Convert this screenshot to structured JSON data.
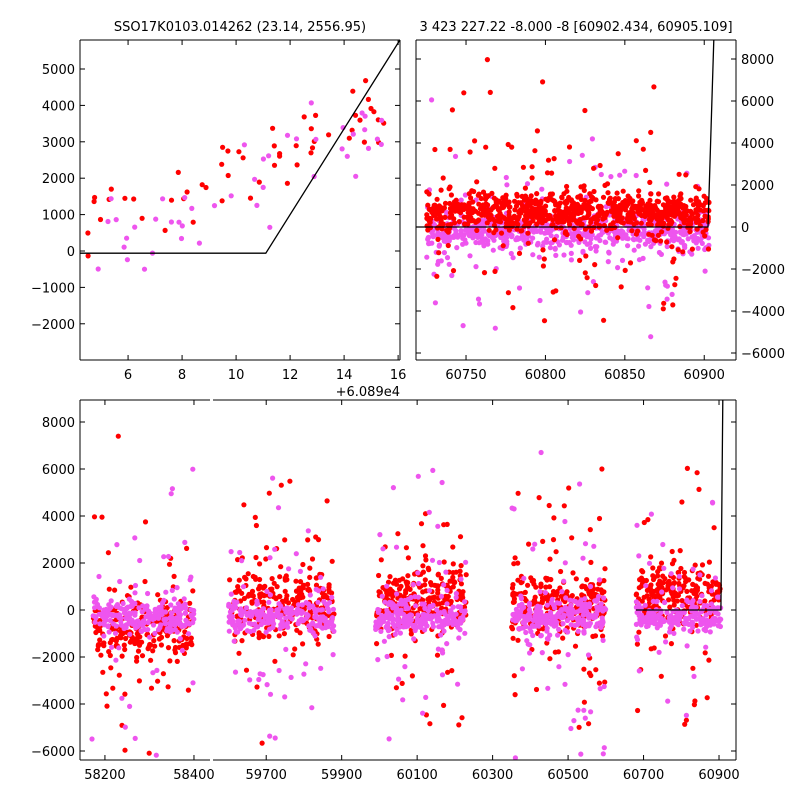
{
  "colors": {
    "red": "#ff0000",
    "magenta": "#ee55ee",
    "line": "#000000"
  },
  "chart_data": [
    {
      "type": "scatter",
      "title": "SSO17K0103.014262 (23.14, 2556.95)",
      "x_offset_label": "+6.089e4",
      "xlim": [
        4.22,
        16.07
      ],
      "ylim": [
        -2995,
        5797
      ],
      "xticks": [
        "6",
        "8",
        "10",
        "12",
        "14",
        "16"
      ],
      "xtick_values": [
        6,
        8,
        10,
        12,
        14,
        16
      ],
      "yticks": [
        "−2000",
        "−1000",
        "0",
        "1000",
        "2000",
        "3000",
        "4000",
        "5000"
      ],
      "ytick_values": [
        -2000,
        -1000,
        0,
        1000,
        2000,
        3000,
        4000,
        5000
      ],
      "ytick_side": "left",
      "model_line": [
        [
          4.22,
          -60
        ],
        [
          11.1,
          -60
        ],
        [
          16.07,
          5800
        ]
      ],
      "series": [
        {
          "name": "red",
          "color": "red",
          "x_range": [
            4.5,
            15.5
          ],
          "base": 900,
          "slope": 230,
          "spread": 500,
          "count": 55
        },
        {
          "name": "magenta",
          "color": "magenta",
          "x_range": [
            4.8,
            15.4
          ],
          "base": 100,
          "slope": 280,
          "spread": 800,
          "count": 45
        }
      ]
    },
    {
      "type": "scatter",
      "title": "3 423 227.22 -8.000 -8 [60902.434, 60905.109]",
      "xlim": [
        60718.5,
        60920
      ],
      "ylim": [
        -6333,
        8905
      ],
      "xticks": [
        "60750",
        "60800",
        "60850",
        "60900"
      ],
      "xtick_values": [
        60750,
        60800,
        60850,
        60900
      ],
      "yticks": [
        "−6000",
        "−4000",
        "−2000",
        "0",
        "2000",
        "4000",
        "6000",
        "8000"
      ],
      "ytick_values": [
        -6000,
        -4000,
        -2000,
        0,
        2000,
        4000,
        6000,
        8000
      ],
      "ytick_side": "right",
      "model_line": [
        [
          60718.5,
          0
        ],
        [
          60902.4,
          0
        ],
        [
          60906,
          8905
        ]
      ],
      "series": [
        {
          "name": "red",
          "color": "red",
          "x_range": [
            60725,
            60903
          ],
          "center": 700,
          "spread": 450,
          "outlier_spread": 2500,
          "count": 900
        },
        {
          "name": "magenta",
          "color": "magenta",
          "x_range": [
            60725,
            60903
          ],
          "center": -200,
          "spread": 450,
          "outlier_spread": 2200,
          "count": 700
        }
      ]
    },
    {
      "type": "scatter",
      "title": "",
      "broken_x_axis": true,
      "panels": [
        {
          "xlim": [
            58144,
            58436
          ],
          "xticks": [
            "58200",
            "58400"
          ],
          "xtick_values": [
            58200,
            58400
          ]
        },
        {
          "xlim": [
            59559,
            60945
          ],
          "xticks": [
            "59700",
            "59900",
            "60100",
            "60300",
            "60500",
            "60700",
            "60900"
          ],
          "xtick_values": [
            59700,
            59900,
            60100,
            60300,
            60500,
            60700,
            60900
          ]
        }
      ],
      "ylim": [
        -6383,
        8936
      ],
      "yticks": [
        "−6000",
        "−4000",
        "−2000",
        "0",
        "2000",
        "4000",
        "6000",
        "8000"
      ],
      "ytick_values": [
        -6000,
        -4000,
        -2000,
        0,
        2000,
        4000,
        6000,
        8000
      ],
      "model_line": [
        [
          60680,
          0
        ],
        [
          60905,
          0
        ],
        [
          60910,
          8936
        ]
      ],
      "clusters": [
        {
          "x_range": [
            58170,
            58400
          ],
          "red_center": -700,
          "magenta_center": -300,
          "count": 500
        },
        {
          "x_range": [
            59600,
            59880
          ],
          "red_center": 300,
          "magenta_center": -300,
          "count": 500
        },
        {
          "x_range": [
            59990,
            60230
          ],
          "red_center": 300,
          "magenta_center": -300,
          "count": 550
        },
        {
          "x_range": [
            60350,
            60600
          ],
          "red_center": 300,
          "magenta_center": -300,
          "count": 550
        },
        {
          "x_range": [
            60680,
            60905
          ],
          "red_center": 700,
          "magenta_center": -300,
          "count": 450
        }
      ]
    }
  ]
}
